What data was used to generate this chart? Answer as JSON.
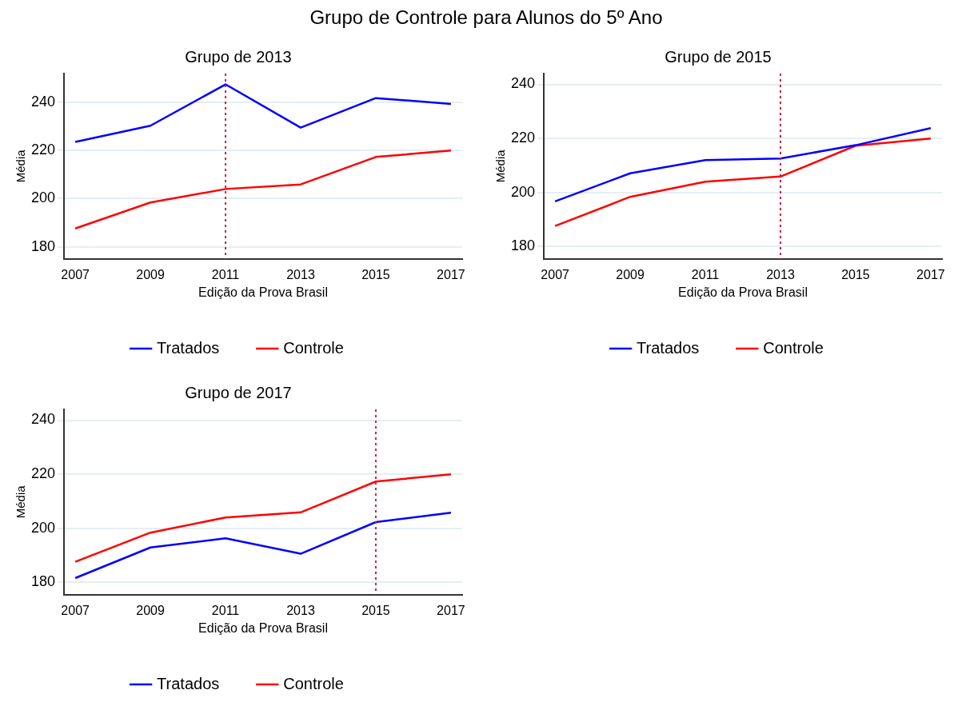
{
  "chart_data": [
    {
      "type": "other",
      "title": "Grupo de Controle para Alunos do 5º Ano"
    },
    {
      "type": "line",
      "title": "Grupo de 2013",
      "xlabel": "Edição da Prova Brasil",
      "ylabel": "Média",
      "x": [
        2007,
        2009,
        2011,
        2013,
        2015,
        2017
      ],
      "xlim": [
        2006.7,
        2017.3
      ],
      "xticks": [
        2007,
        2009,
        2011,
        2013,
        2015,
        2017
      ],
      "ylim": [
        175,
        252
      ],
      "yticks": [
        180,
        200,
        220,
        240
      ],
      "grid": "y",
      "legend": "bottom",
      "marker": "none",
      "line_style": "solid",
      "series": [
        {
          "name": "Tratados",
          "color": "#0000ff",
          "values": [
            223.6,
            230.3,
            247.5,
            229.5,
            241.8,
            239.4
          ]
        },
        {
          "name": "Controle",
          "color": "#ff0000",
          "values": [
            187.6,
            198.4,
            204,
            205.9,
            217.3,
            220
          ]
        }
      ],
      "ref_lines": [
        {
          "axis": "x",
          "value": 2011,
          "color": "#c0284a",
          "line_style": "dotted"
        }
      ]
    },
    {
      "type": "line",
      "title": "Grupo de 2015",
      "xlabel": "Edição da Prova Brasil",
      "ylabel": "Média",
      "x": [
        2007,
        2009,
        2011,
        2013,
        2015,
        2017
      ],
      "xlim": [
        2006.7,
        2017.3
      ],
      "xticks": [
        2007,
        2009,
        2011,
        2013,
        2015,
        2017
      ],
      "ylim": [
        175.5,
        244
      ],
      "yticks": [
        180,
        200,
        220,
        240
      ],
      "grid": "y",
      "legend": "bottom",
      "marker": "none",
      "line_style": "solid",
      "series": [
        {
          "name": "Tratados",
          "color": "#0000ff",
          "values": [
            196.7,
            207.1,
            212,
            212.6,
            217.5,
            223.8
          ]
        },
        {
          "name": "Controle",
          "color": "#ff0000",
          "values": [
            187.6,
            198.4,
            204,
            205.9,
            217.3,
            220
          ]
        }
      ],
      "ref_lines": [
        {
          "axis": "x",
          "value": 2013,
          "color": "#c0284a",
          "line_style": "dotted"
        }
      ]
    },
    {
      "type": "line",
      "title": "Grupo de 2017",
      "xlabel": "Edição da Prova Brasil",
      "ylabel": "Média",
      "x": [
        2007,
        2009,
        2011,
        2013,
        2015,
        2017
      ],
      "xlim": [
        2006.7,
        2017.3
      ],
      "xticks": [
        2007,
        2009,
        2011,
        2013,
        2015,
        2017
      ],
      "ylim": [
        175.5,
        244
      ],
      "yticks": [
        180,
        200,
        220,
        240
      ],
      "grid": "y",
      "legend": "bottom",
      "marker": "none",
      "line_style": "solid",
      "series": [
        {
          "name": "Tratados",
          "color": "#0000ff",
          "values": [
            181.6,
            192.9,
            196.3,
            190.6,
            202.3,
            205.8
          ]
        },
        {
          "name": "Controle",
          "color": "#ff0000",
          "values": [
            187.6,
            198.4,
            204,
            205.9,
            217.3,
            220
          ]
        }
      ],
      "ref_lines": [
        {
          "axis": "x",
          "value": 2015,
          "color": "#c0284a",
          "line_style": "dotted"
        }
      ]
    }
  ]
}
